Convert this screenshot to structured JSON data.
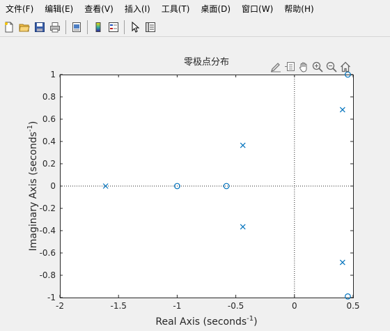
{
  "menubar": {
    "items": [
      {
        "label": "文件(F)",
        "name": "menu-file"
      },
      {
        "label": "编辑(E)",
        "name": "menu-edit"
      },
      {
        "label": "查看(V)",
        "name": "menu-view"
      },
      {
        "label": "插入(I)",
        "name": "menu-insert"
      },
      {
        "label": "工具(T)",
        "name": "menu-tools"
      },
      {
        "label": "桌面(D)",
        "name": "menu-desktop"
      },
      {
        "label": "窗口(W)",
        "name": "menu-window"
      },
      {
        "label": "帮助(H)",
        "name": "menu-help"
      }
    ]
  },
  "toolbar": {
    "icons": [
      "new-figure-icon",
      "open-file-icon",
      "save-icon",
      "print-icon",
      "print-preview-icon",
      "colorbar-icon",
      "legend-icon",
      "pointer-icon",
      "property-inspector-icon"
    ]
  },
  "axes_toolbar": {
    "icons": [
      "brush-icon",
      "data-tips-icon",
      "pan-hand-icon",
      "zoom-in-icon",
      "zoom-out-icon",
      "home-icon"
    ]
  },
  "colors": {
    "marker": "#0072bd",
    "axes_background": "#ffffff",
    "figure_background": "#f0f0f0"
  },
  "chart_data": {
    "type": "scatter",
    "title": "零极点分布",
    "xlabel": "Real Axis (seconds",
    "xlabel_sup": "-1",
    "xlabel_end": ")",
    "ylabel": "Imaginary Axis (seconds",
    "ylabel_sup": "-1",
    "ylabel_end": ")",
    "xlim": [
      -2,
      0.5
    ],
    "ylim": [
      -1,
      1
    ],
    "xticks": [
      -2,
      -1.5,
      -1,
      -0.5,
      0,
      0.5
    ],
    "xtick_labels": [
      "-2",
      "-1.5",
      "-1",
      "-0.5",
      "0",
      "0.5"
    ],
    "yticks": [
      -1,
      -0.8,
      -0.6,
      -0.4,
      -0.2,
      0,
      0.2,
      0.4,
      0.6,
      0.8,
      1
    ],
    "ytick_labels": [
      "-1",
      "-0.8",
      "-0.6",
      "-0.4",
      "-0.2",
      "0",
      "0.2",
      "0.4",
      "0.6",
      "0.8",
      "1"
    ],
    "grid": false,
    "series": [
      {
        "marker": "x",
        "points": [
          [
            -1.61,
            0
          ],
          [
            -0.44,
            0.365
          ],
          [
            -0.44,
            -0.365
          ],
          [
            0.41,
            0.685
          ],
          [
            0.41,
            -0.685
          ]
        ]
      },
      {
        "marker": "o",
        "points": [
          [
            -1.0,
            0
          ],
          [
            -0.58,
            0
          ],
          [
            0.455,
            1.0
          ],
          [
            0.455,
            -0.99
          ]
        ]
      }
    ]
  }
}
